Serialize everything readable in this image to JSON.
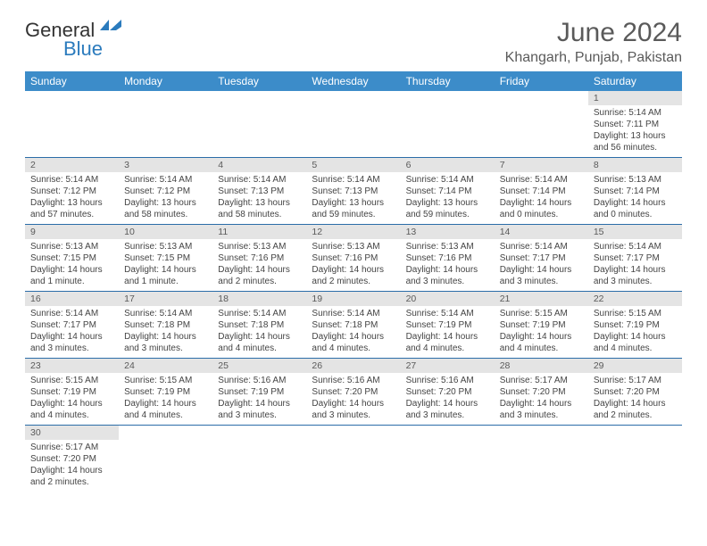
{
  "brand": {
    "part1": "General",
    "part2": "Blue",
    "logo_color": "#2b7bbd"
  },
  "title": "June 2024",
  "location": "Khangarh, Punjab, Pakistan",
  "header_bg": "#3c8cc9",
  "daynum_bg": "#e4e4e4",
  "row_border": "#2b6da8",
  "weekdays": [
    "Sunday",
    "Monday",
    "Tuesday",
    "Wednesday",
    "Thursday",
    "Friday",
    "Saturday"
  ],
  "weeks": [
    [
      null,
      null,
      null,
      null,
      null,
      null,
      {
        "d": "1",
        "sunrise": "5:14 AM",
        "sunset": "7:11 PM",
        "daylight": "13 hours and 56 minutes."
      }
    ],
    [
      {
        "d": "2",
        "sunrise": "5:14 AM",
        "sunset": "7:12 PM",
        "daylight": "13 hours and 57 minutes."
      },
      {
        "d": "3",
        "sunrise": "5:14 AM",
        "sunset": "7:12 PM",
        "daylight": "13 hours and 58 minutes."
      },
      {
        "d": "4",
        "sunrise": "5:14 AM",
        "sunset": "7:13 PM",
        "daylight": "13 hours and 58 minutes."
      },
      {
        "d": "5",
        "sunrise": "5:14 AM",
        "sunset": "7:13 PM",
        "daylight": "13 hours and 59 minutes."
      },
      {
        "d": "6",
        "sunrise": "5:14 AM",
        "sunset": "7:14 PM",
        "daylight": "13 hours and 59 minutes."
      },
      {
        "d": "7",
        "sunrise": "5:14 AM",
        "sunset": "7:14 PM",
        "daylight": "14 hours and 0 minutes."
      },
      {
        "d": "8",
        "sunrise": "5:13 AM",
        "sunset": "7:14 PM",
        "daylight": "14 hours and 0 minutes."
      }
    ],
    [
      {
        "d": "9",
        "sunrise": "5:13 AM",
        "sunset": "7:15 PM",
        "daylight": "14 hours and 1 minute."
      },
      {
        "d": "10",
        "sunrise": "5:13 AM",
        "sunset": "7:15 PM",
        "daylight": "14 hours and 1 minute."
      },
      {
        "d": "11",
        "sunrise": "5:13 AM",
        "sunset": "7:16 PM",
        "daylight": "14 hours and 2 minutes."
      },
      {
        "d": "12",
        "sunrise": "5:13 AM",
        "sunset": "7:16 PM",
        "daylight": "14 hours and 2 minutes."
      },
      {
        "d": "13",
        "sunrise": "5:13 AM",
        "sunset": "7:16 PM",
        "daylight": "14 hours and 3 minutes."
      },
      {
        "d": "14",
        "sunrise": "5:14 AM",
        "sunset": "7:17 PM",
        "daylight": "14 hours and 3 minutes."
      },
      {
        "d": "15",
        "sunrise": "5:14 AM",
        "sunset": "7:17 PM",
        "daylight": "14 hours and 3 minutes."
      }
    ],
    [
      {
        "d": "16",
        "sunrise": "5:14 AM",
        "sunset": "7:17 PM",
        "daylight": "14 hours and 3 minutes."
      },
      {
        "d": "17",
        "sunrise": "5:14 AM",
        "sunset": "7:18 PM",
        "daylight": "14 hours and 3 minutes."
      },
      {
        "d": "18",
        "sunrise": "5:14 AM",
        "sunset": "7:18 PM",
        "daylight": "14 hours and 4 minutes."
      },
      {
        "d": "19",
        "sunrise": "5:14 AM",
        "sunset": "7:18 PM",
        "daylight": "14 hours and 4 minutes."
      },
      {
        "d": "20",
        "sunrise": "5:14 AM",
        "sunset": "7:19 PM",
        "daylight": "14 hours and 4 minutes."
      },
      {
        "d": "21",
        "sunrise": "5:15 AM",
        "sunset": "7:19 PM",
        "daylight": "14 hours and 4 minutes."
      },
      {
        "d": "22",
        "sunrise": "5:15 AM",
        "sunset": "7:19 PM",
        "daylight": "14 hours and 4 minutes."
      }
    ],
    [
      {
        "d": "23",
        "sunrise": "5:15 AM",
        "sunset": "7:19 PM",
        "daylight": "14 hours and 4 minutes."
      },
      {
        "d": "24",
        "sunrise": "5:15 AM",
        "sunset": "7:19 PM",
        "daylight": "14 hours and 4 minutes."
      },
      {
        "d": "25",
        "sunrise": "5:16 AM",
        "sunset": "7:19 PM",
        "daylight": "14 hours and 3 minutes."
      },
      {
        "d": "26",
        "sunrise": "5:16 AM",
        "sunset": "7:20 PM",
        "daylight": "14 hours and 3 minutes."
      },
      {
        "d": "27",
        "sunrise": "5:16 AM",
        "sunset": "7:20 PM",
        "daylight": "14 hours and 3 minutes."
      },
      {
        "d": "28",
        "sunrise": "5:17 AM",
        "sunset": "7:20 PM",
        "daylight": "14 hours and 3 minutes."
      },
      {
        "d": "29",
        "sunrise": "5:17 AM",
        "sunset": "7:20 PM",
        "daylight": "14 hours and 2 minutes."
      }
    ],
    [
      {
        "d": "30",
        "sunrise": "5:17 AM",
        "sunset": "7:20 PM",
        "daylight": "14 hours and 2 minutes."
      },
      null,
      null,
      null,
      null,
      null,
      null
    ]
  ],
  "labels": {
    "sunrise": "Sunrise:",
    "sunset": "Sunset:",
    "daylight": "Daylight:"
  }
}
